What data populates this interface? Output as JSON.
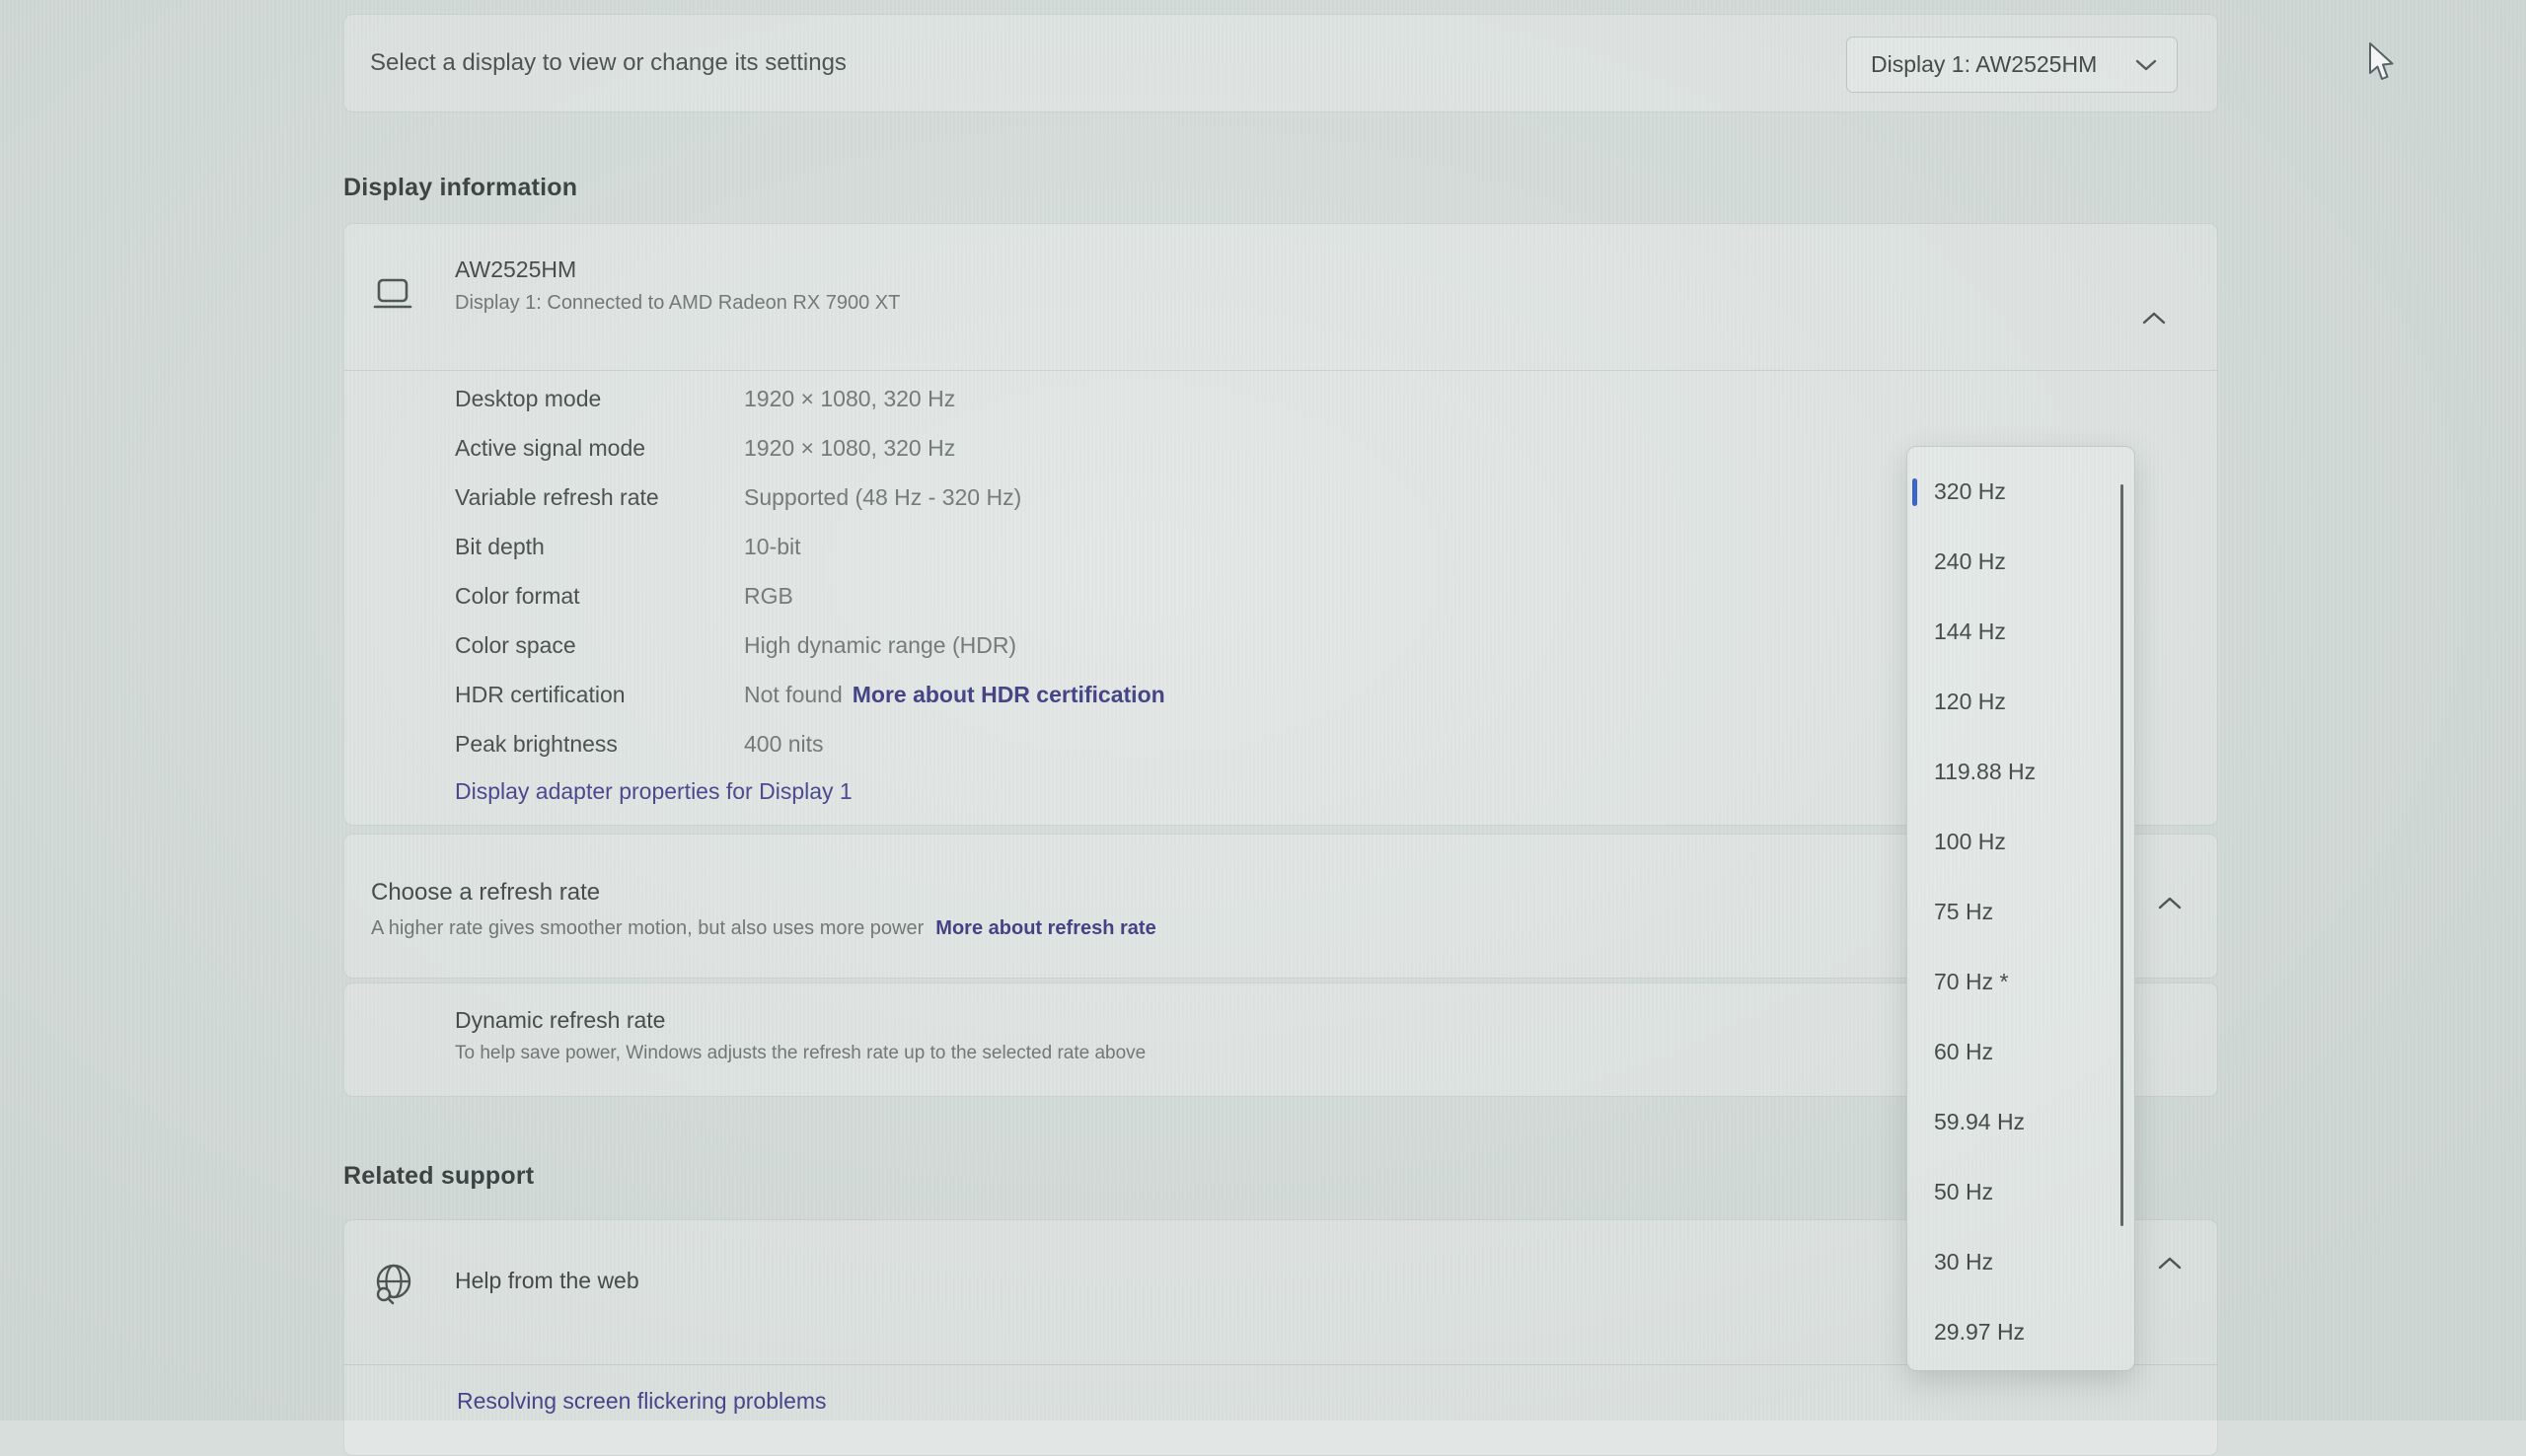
{
  "header": {
    "select_label": "Select a display to view or change its settings",
    "display_dropdown_value": "Display 1: AW2525HM"
  },
  "display_information": {
    "section_title": "Display information",
    "monitor_name": "AW2525HM",
    "connection": "Display 1: Connected to AMD Radeon RX 7900 XT",
    "details": [
      {
        "label": "Desktop mode",
        "value": "1920 × 1080, 320 Hz"
      },
      {
        "label": "Active signal mode",
        "value": "1920 × 1080, 320 Hz"
      },
      {
        "label": "Variable refresh rate",
        "value": "Supported (48 Hz - 320 Hz)"
      },
      {
        "label": "Bit depth",
        "value": "10-bit"
      },
      {
        "label": "Color format",
        "value": "RGB"
      },
      {
        "label": "Color space",
        "value": "High dynamic range (HDR)"
      },
      {
        "label": "HDR certification",
        "value": "Not found",
        "link": "More about HDR certification"
      },
      {
        "label": "Peak brightness",
        "value": "400 nits"
      }
    ],
    "adapter_link": "Display adapter properties for Display 1"
  },
  "refresh_rate": {
    "title": "Choose a refresh rate",
    "subtitle": "A higher rate gives smoother motion, but also uses more power",
    "more_link": "More about refresh rate",
    "selected": "320 Hz",
    "options": [
      "320 Hz",
      "240 Hz",
      "144 Hz",
      "120 Hz",
      "119.88 Hz",
      "100 Hz",
      "75 Hz",
      "70 Hz *",
      "60 Hz",
      "59.94 Hz",
      "50 Hz",
      "30 Hz",
      "29.97 Hz"
    ]
  },
  "dynamic_refresh_rate": {
    "title": "Dynamic refresh rate",
    "subtitle": "To help save power, Windows adjusts the refresh rate up to the selected rate above"
  },
  "related_support": {
    "section_title": "Related support",
    "help_title": "Help from the web",
    "links": [
      "Resolving screen flickering problems"
    ]
  },
  "colors": {
    "page_bg": "#d7dedc",
    "card_bg": "#e2e7e5",
    "accent_link": "#45418c",
    "bold_link": "#3c3a80",
    "selection_pill": "#3560c9"
  }
}
